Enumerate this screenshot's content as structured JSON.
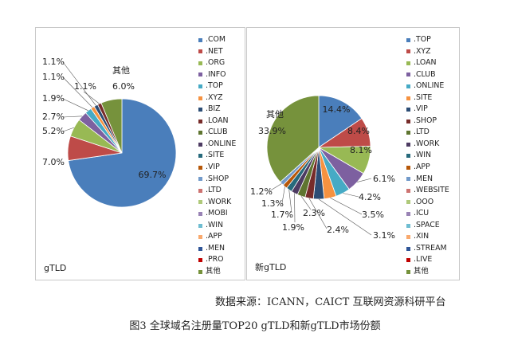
{
  "chart_data": [
    {
      "type": "pie",
      "title": "gTLD",
      "legend": ".COM,.NET,.ORG,.INFO,.TOP,.XYZ,.BIZ,.LOAN,.CLUB,.ONLINE,.SITE,.VIP,.SHOP,.LTD,.WORK,.MOBI,.WIN,.APP,.MEN,.PRO,其他",
      "legend_position": "right",
      "slices": [
        {
          "name": ".COM",
          "value": 69.7,
          "label": "69.7%",
          "color": "#4a7ebb"
        },
        {
          "name": ".NET",
          "value": 7.0,
          "label": "7.0%",
          "color": "#be4b48"
        },
        {
          "name": ".ORG",
          "value": 5.2,
          "label": "5.2%",
          "color": "#98b954"
        },
        {
          "name": ".INFO",
          "value": 2.7,
          "label": "2.7%",
          "color": "#7d60a0"
        },
        {
          "name": ".TOP",
          "value": 1.9,
          "label": "1.9%",
          "color": "#46aac5"
        },
        {
          "name": ".XYZ",
          "value": 1.1,
          "label": "1.1%",
          "color": "#f69240"
        },
        {
          "name": ".BIZ",
          "value": 1.1,
          "label": "1.1%",
          "color": "#2c4d75"
        },
        {
          "name": ".LOAN",
          "value": 1.1,
          "label": "1.1%",
          "color": "#772c2a"
        },
        {
          "name": "其他",
          "value": 6.0,
          "label": "6.0%",
          "color": "#76923c"
        }
      ]
    },
    {
      "type": "pie",
      "title": "新gTLD",
      "legend": ".TOP,.XYZ,.LOAN,.CLUB,.ONLINE,.SITE,.VIP,.SHOP,.LTD,.WORK,.WIN,.APP,.MEN,.WEBSITE,.OOO,.ICU,.SPACE,.XIN,.STREAM,.LIVE,其他",
      "legend_position": "right",
      "slices": [
        {
          "name": ".TOP",
          "value": 14.4,
          "label": "14.4%",
          "color": "#4a7ebb"
        },
        {
          "name": ".XYZ",
          "value": 8.4,
          "label": "8.4%",
          "color": "#be4b48"
        },
        {
          "name": ".LOAN",
          "value": 8.1,
          "label": "8.1%",
          "color": "#98b954"
        },
        {
          "name": ".CLUB",
          "value": 6.1,
          "label": "6.1%",
          "color": "#7d60a0"
        },
        {
          "name": ".ONLINE",
          "value": 4.2,
          "label": "4.2%",
          "color": "#46aac5"
        },
        {
          "name": ".SITE",
          "value": 3.5,
          "label": "3.5%",
          "color": "#f69240"
        },
        {
          "name": ".VIP",
          "value": 3.1,
          "label": "3.1%",
          "color": "#2c4d75"
        },
        {
          "name": ".SHOP",
          "value": 2.4,
          "label": "2.4%",
          "color": "#772c2a"
        },
        {
          "name": ".LTD",
          "value": 2.3,
          "label": "2.3%",
          "color": "#5f7530"
        },
        {
          "name": ".WORK",
          "value": 1.9,
          "label": "1.9%",
          "color": "#4d3b62"
        },
        {
          "name": ".WIN",
          "value": 1.7,
          "label": "1.7%",
          "color": "#276a7c"
        },
        {
          "name": ".APP",
          "value": 1.3,
          "label": "1.3%",
          "color": "#b65708"
        },
        {
          "name": ".MEN",
          "value": 1.2,
          "label": "1.2%",
          "color": "#729aca"
        },
        {
          "name": ".WEBSITE",
          "value": 0,
          "label": "",
          "color": "#cd7371"
        },
        {
          "name": ".OOO",
          "value": 0,
          "label": "",
          "color": "#afc97a"
        },
        {
          "name": ".ICU",
          "value": 0,
          "label": "",
          "color": "#9983b5"
        },
        {
          "name": ".SPACE",
          "value": 0,
          "label": "",
          "color": "#6fbdd1"
        },
        {
          "name": ".XIN",
          "value": 0,
          "label": "",
          "color": "#f9a96e"
        },
        {
          "name": ".STREAM",
          "value": 0,
          "label": "",
          "color": "#2f5597"
        },
        {
          "name": ".LIVE",
          "value": 0,
          "label": "",
          "color": "#c00000"
        },
        {
          "name": "其他",
          "value": 33.9,
          "label": "33.9%",
          "color": "#76923c"
        }
      ]
    }
  ],
  "legends": {
    "left": [
      {
        "label": ".COM",
        "color": "#4a7ebb"
      },
      {
        "label": ".NET",
        "color": "#be4b48"
      },
      {
        "label": ".ORG",
        "color": "#98b954"
      },
      {
        "label": ".INFO",
        "color": "#7d60a0"
      },
      {
        "label": ".TOP",
        "color": "#46aac5"
      },
      {
        "label": ".XYZ",
        "color": "#f69240"
      },
      {
        "label": ".BIZ",
        "color": "#2c4d75"
      },
      {
        "label": ".LOAN",
        "color": "#772c2a"
      },
      {
        "label": ".CLUB",
        "color": "#5f7530"
      },
      {
        "label": ".ONLINE",
        "color": "#4d3b62"
      },
      {
        "label": ".SITE",
        "color": "#276a7c"
      },
      {
        "label": ".VIP",
        "color": "#b65708"
      },
      {
        "label": ".SHOP",
        "color": "#729aca"
      },
      {
        "label": ".LTD",
        "color": "#cd7371"
      },
      {
        "label": ".WORK",
        "color": "#afc97a"
      },
      {
        "label": ".MOBI",
        "color": "#9983b5"
      },
      {
        "label": ".WIN",
        "color": "#6fbdd1"
      },
      {
        "label": ".APP",
        "color": "#f9a96e"
      },
      {
        "label": ".MEN",
        "color": "#2f5597"
      },
      {
        "label": ".PRO",
        "color": "#c00000"
      },
      {
        "label": "其他",
        "color": "#76923c"
      }
    ],
    "right": [
      {
        "label": ".TOP",
        "color": "#4a7ebb"
      },
      {
        "label": ".XYZ",
        "color": "#be4b48"
      },
      {
        "label": ".LOAN",
        "color": "#98b954"
      },
      {
        "label": ".CLUB",
        "color": "#7d60a0"
      },
      {
        "label": ".ONLINE",
        "color": "#46aac5"
      },
      {
        "label": ".SITE",
        "color": "#f69240"
      },
      {
        "label": ".VIP",
        "color": "#2c4d75"
      },
      {
        "label": ".SHOP",
        "color": "#772c2a"
      },
      {
        "label": ".LTD",
        "color": "#5f7530"
      },
      {
        "label": ".WORK",
        "color": "#4d3b62"
      },
      {
        "label": ".WIN",
        "color": "#276a7c"
      },
      {
        "label": ".APP",
        "color": "#b65708"
      },
      {
        "label": ".MEN",
        "color": "#729aca"
      },
      {
        "label": ".WEBSITE",
        "color": "#cd7371"
      },
      {
        "label": ".OOO",
        "color": "#afc97a"
      },
      {
        "label": ".ICU",
        "color": "#9983b5"
      },
      {
        "label": ".SPACE",
        "color": "#6fbdd1"
      },
      {
        "label": ".XIN",
        "color": "#f9a96e"
      },
      {
        "label": ".STREAM",
        "color": "#2f5597"
      },
      {
        "label": ".LIVE",
        "color": "#c00000"
      },
      {
        "label": "其他",
        "color": "#76923c"
      }
    ]
  },
  "left_panel": {
    "title": "gTLD",
    "other_label": "其他"
  },
  "right_panel": {
    "title": "新gTLD",
    "other_label": "其他"
  },
  "source_text": "数据来源：ICANN，CAICT 互联网资源科研平台",
  "caption": "图3 全球域名注册量TOP20 gTLD和新gTLD市场份额"
}
